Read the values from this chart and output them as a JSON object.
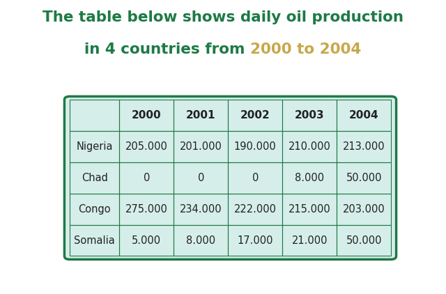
{
  "title_line1": "The table below shows daily oil production",
  "title_line2_normal": "in 4 countries from ",
  "title_line2_highlight": "2000 to 2004",
  "title_color_normal": "#1e7a46",
  "title_color_highlight": "#c8a84b",
  "title_fontsize": 15.5,
  "columns": [
    "",
    "2000",
    "2001",
    "2002",
    "2003",
    "2004"
  ],
  "rows": [
    [
      "Nigeria",
      "205.000",
      "201.000",
      "190.000",
      "210.000",
      "213.000"
    ],
    [
      "Chad",
      "0",
      "0",
      "0",
      "8.000",
      "50.000"
    ],
    [
      "Congo",
      "275.000",
      "234.000",
      "222.000",
      "215.000",
      "203.000"
    ],
    [
      "Somalia",
      "5.000",
      "8.000",
      "17.000",
      "21.000",
      "50.000"
    ]
  ],
  "table_bg": "#d6eeea",
  "table_border_color": "#1e7a46",
  "cell_text_color": "#222222",
  "header_text_color": "#222222",
  "row_label_color": "#222222",
  "background_color": "#ffffff",
  "table_border_lw": 2.5,
  "grid_lw": 0.8,
  "header_fontsize": 11,
  "cell_fontsize": 10.5,
  "row_label_fontsize": 10.5
}
